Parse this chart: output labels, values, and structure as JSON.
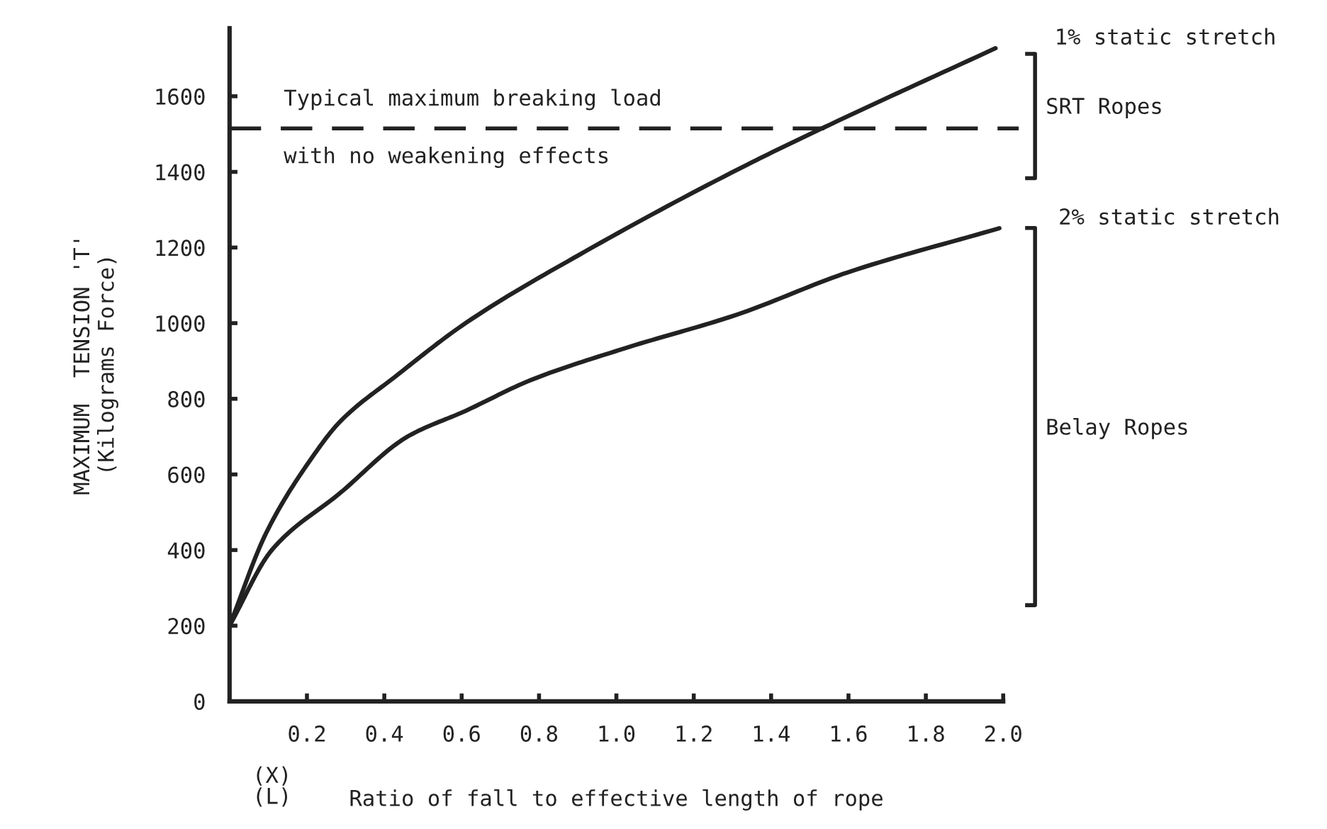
{
  "chart_data": {
    "type": "line",
    "xlabel": "Ratio of fall to effective length of rope",
    "ylabel": "MAXIMUM  TENSION 'T'\n(Kilograms Force)",
    "annotations": [
      "(X)\n(L)",
      "SRT Ropes",
      "Belay Ropes"
    ],
    "series": [
      {
        "name": "1% static stretch",
        "color": "#222222",
        "x": [
          0,
          0.095,
          0.21,
          0.286,
          0.43,
          0.61,
          0.92,
          1.34,
          1.55,
          1.98
        ],
        "values": [
          200,
          446,
          640,
          740,
          860,
          1000,
          1190,
          1420,
          1524,
          1727
        ]
      },
      {
        "name": "2% static stretch",
        "color": "#222222",
        "x": [
          0,
          0.11,
          0.286,
          0.46,
          0.61,
          0.78,
          1.02,
          1.31,
          1.6,
          1.99
        ],
        "values": [
          200,
          401,
          551,
          700,
          768,
          850,
          933,
          1022,
          1135,
          1251
        ]
      }
    ],
    "ref_lines": [
      {
        "axis": "y",
        "value": 1515,
        "label": "Typical maximum breaking load\nwith no weakening effects",
        "color": "#222222",
        "line_style": "dashed"
      }
    ],
    "xlim": [
      0,
      2.0
    ],
    "ylim": [
      0,
      1780
    ],
    "xticks": [
      0.2,
      0.4,
      0.6,
      0.8,
      {
        "value": 1,
        "label": "1.0"
      },
      1.2,
      1.4,
      1.6,
      1.8,
      {
        "value": 2,
        "label": "2.0"
      }
    ],
    "yticks": [
      0,
      200,
      400,
      600,
      800,
      1000,
      1200,
      1400,
      1600
    ],
    "grid": false,
    "legend": false,
    "marker": "none",
    "line_style": "solid"
  }
}
